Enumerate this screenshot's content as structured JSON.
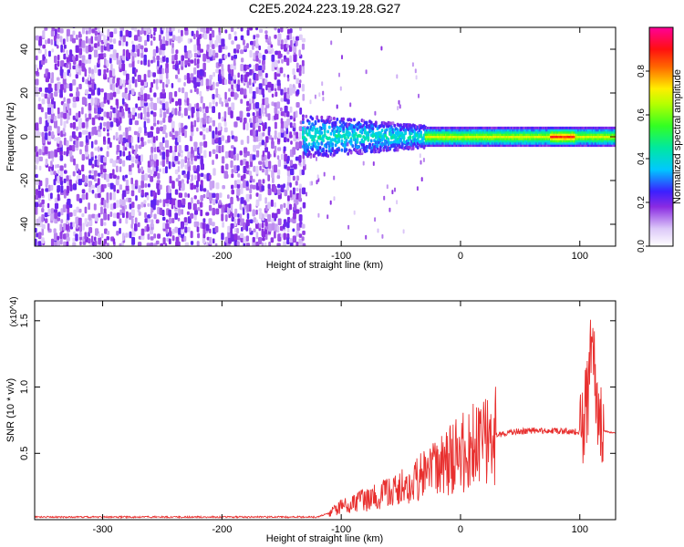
{
  "title": "C2E5.2024.223.19.28.G27",
  "chart_data": [
    {
      "type": "heatmap",
      "title": "C2E5.2024.223.19.28.G27",
      "xlabel": "Height of straight line (km)",
      "ylabel": "Frequency (Hz)",
      "xlim": [
        -357,
        130
      ],
      "ylim": [
        -50,
        50
      ],
      "x_ticks": [
        -300,
        -200,
        -100,
        0,
        100
      ],
      "x_tick_labels": [
        "-300",
        "-200",
        "-100",
        "0",
        "100"
      ],
      "y_ticks": [
        -40,
        -20,
        0,
        20,
        40
      ],
      "y_tick_labels": [
        "-40",
        "-20",
        "0",
        "20",
        "40"
      ],
      "colorbar": {
        "label": "Normalized spectral amplitude",
        "range": [
          0,
          1
        ],
        "ticks": [
          0.0,
          0.2,
          0.4,
          0.6,
          0.8
        ],
        "tick_labels": [
          "0.0",
          "0.2",
          "0.4",
          "0.6",
          "0.8"
        ],
        "colormap": "rainbow (white, purple, blue, cyan, green, yellow, red, magenta)"
      },
      "regions": [
        {
          "x_range": [
            -357,
            -133
          ],
          "y_range": [
            -50,
            50
          ],
          "amplitude": "0.05-0.25",
          "description": "noise"
        },
        {
          "x_range": [
            -133,
            -30
          ],
          "y_range": [
            -10,
            10
          ],
          "amplitude": "0.1-0.45"
        },
        {
          "x_range": [
            -30,
            130
          ],
          "y_range": [
            -3,
            3
          ],
          "amplitude": "0.4-0.95",
          "peak_x": [
            75,
            95
          ]
        }
      ],
      "grid": false
    },
    {
      "type": "line",
      "xlabel": "Height of straight line (km)",
      "ylabel": "SNR (10 * v/v)",
      "y_multiplier_label": "(x10^4)",
      "xlim": [
        -357,
        130
      ],
      "ylim": [
        0,
        1.65
      ],
      "x_ticks": [
        -300,
        -200,
        -100,
        0,
        100
      ],
      "x_tick_labels": [
        "-300",
        "-200",
        "-100",
        "0",
        "100"
      ],
      "y_ticks": [
        0.5,
        1.0,
        1.5
      ],
      "y_tick_labels": [
        "0.5",
        "1.0",
        "1.5"
      ],
      "color": "#e8302f",
      "series": [
        {
          "x": [
            -357,
            -300,
            -200,
            -120,
            -110,
            -100,
            -80,
            -60,
            -40,
            -30,
            -20,
            -10,
            0,
            10,
            20,
            30,
            40,
            60,
            80,
            100,
            105,
            108,
            110,
            113,
            120,
            130
          ],
          "y": [
            0.02,
            0.02,
            0.02,
            0.02,
            0.05,
            0.1,
            0.15,
            0.2,
            0.28,
            0.33,
            0.4,
            0.45,
            0.5,
            0.55,
            0.6,
            0.64,
            0.66,
            0.67,
            0.67,
            0.66,
            0.8,
            1.0,
            1.65,
            0.9,
            0.67,
            0.65
          ]
        }
      ],
      "grid": false
    }
  ]
}
